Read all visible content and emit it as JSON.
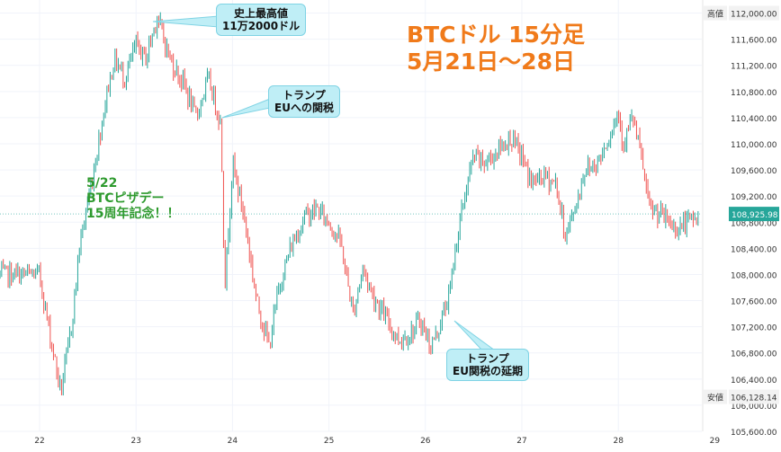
{
  "title": {
    "line1": "BTCドル 15分足",
    "line2": "5月21日〜28日"
  },
  "green_note": {
    "line1": "5/22",
    "line2": "BTCピザデー",
    "line3": "15周年記念！！"
  },
  "callouts": {
    "ath": {
      "line1": "史上最高値",
      "line2": "11万2000ドル"
    },
    "eu_tariff": {
      "line1": "トランプ",
      "line2": "EUへの関税"
    },
    "eu_delay": {
      "line1": "トランプ",
      "line2": "EU関税の延期"
    }
  },
  "price_labels": {
    "high_tag": "高値",
    "high_value": "112,000.00",
    "low_tag": "安値",
    "low_value": "106,128.14",
    "current_value": "108,925.98"
  },
  "colors": {
    "up": "#26a69a",
    "down": "#ef5350",
    "current": "#26a69a",
    "accent": "#f07a1a"
  },
  "chart_data": {
    "type": "candlestick",
    "ylim": [
      105600,
      112200
    ],
    "yticks": [
      "105,600.00",
      "106,000.00",
      "106,400.00",
      "106,800.00",
      "107,200.00",
      "107,600.00",
      "108,000.00",
      "108,400.00",
      "108,800.00",
      "109,200.00",
      "109,600.00",
      "110,000.00",
      "110,400.00",
      "110,800.00",
      "111,200.00",
      "111,600.00",
      "112,000.00"
    ],
    "xticks": [
      "22",
      "23",
      "24",
      "25",
      "26",
      "27",
      "28",
      "29"
    ],
    "grid": true,
    "anchors": [
      {
        "t": 0.0,
        "p": 108000
      },
      {
        "t": 0.08,
        "p": 107300
      },
      {
        "t": 0.22,
        "p": 106200
      },
      {
        "t": 0.33,
        "p": 107200
      },
      {
        "t": 0.42,
        "p": 108500
      },
      {
        "t": 0.55,
        "p": 109500
      },
      {
        "t": 0.7,
        "p": 110800
      },
      {
        "t": 0.78,
        "p": 111300
      },
      {
        "t": 0.88,
        "p": 111000
      },
      {
        "t": 1.0,
        "p": 111500
      },
      {
        "t": 1.1,
        "p": 111300
      },
      {
        "t": 1.22,
        "p": 111950
      },
      {
        "t": 1.35,
        "p": 111300
      },
      {
        "t": 1.5,
        "p": 110900
      },
      {
        "t": 1.62,
        "p": 110400
      },
      {
        "t": 1.75,
        "p": 111000
      },
      {
        "t": 1.88,
        "p": 110300
      },
      {
        "t": 1.92,
        "p": 107800
      },
      {
        "t": 2.0,
        "p": 109700
      },
      {
        "t": 2.12,
        "p": 108900
      },
      {
        "t": 2.25,
        "p": 107600
      },
      {
        "t": 2.38,
        "p": 106900
      },
      {
        "t": 2.48,
        "p": 107800
      },
      {
        "t": 2.6,
        "p": 108400
      },
      {
        "t": 2.75,
        "p": 108900
      },
      {
        "t": 2.88,
        "p": 109000
      },
      {
        "t": 3.0,
        "p": 108800
      },
      {
        "t": 3.12,
        "p": 108500
      },
      {
        "t": 3.25,
        "p": 107400
      },
      {
        "t": 3.35,
        "p": 108100
      },
      {
        "t": 3.45,
        "p": 107700
      },
      {
        "t": 3.6,
        "p": 107300
      },
      {
        "t": 3.72,
        "p": 107000
      },
      {
        "t": 3.85,
        "p": 107100
      },
      {
        "t": 3.95,
        "p": 107300
      },
      {
        "t": 4.05,
        "p": 106900
      },
      {
        "t": 4.12,
        "p": 107100
      },
      {
        "t": 4.25,
        "p": 107700
      },
      {
        "t": 4.32,
        "p": 108500
      },
      {
        "t": 4.42,
        "p": 109300
      },
      {
        "t": 4.5,
        "p": 109800
      },
      {
        "t": 4.62,
        "p": 109700
      },
      {
        "t": 4.75,
        "p": 109900
      },
      {
        "t": 4.88,
        "p": 110100
      },
      {
        "t": 5.0,
        "p": 109800
      },
      {
        "t": 5.1,
        "p": 109400
      },
      {
        "t": 5.22,
        "p": 109500
      },
      {
        "t": 5.35,
        "p": 109400
      },
      {
        "t": 5.45,
        "p": 108600
      },
      {
        "t": 5.55,
        "p": 109000
      },
      {
        "t": 5.65,
        "p": 109600
      },
      {
        "t": 5.78,
        "p": 109700
      },
      {
        "t": 5.9,
        "p": 110100
      },
      {
        "t": 6.0,
        "p": 110500
      },
      {
        "t": 6.05,
        "p": 110000
      },
      {
        "t": 6.15,
        "p": 110400
      },
      {
        "t": 6.25,
        "p": 109700
      },
      {
        "t": 6.32,
        "p": 109000
      },
      {
        "t": 6.45,
        "p": 108900
      },
      {
        "t": 6.6,
        "p": 108700
      },
      {
        "t": 6.72,
        "p": 108800
      },
      {
        "t": 6.85,
        "p": 108900
      }
    ]
  }
}
